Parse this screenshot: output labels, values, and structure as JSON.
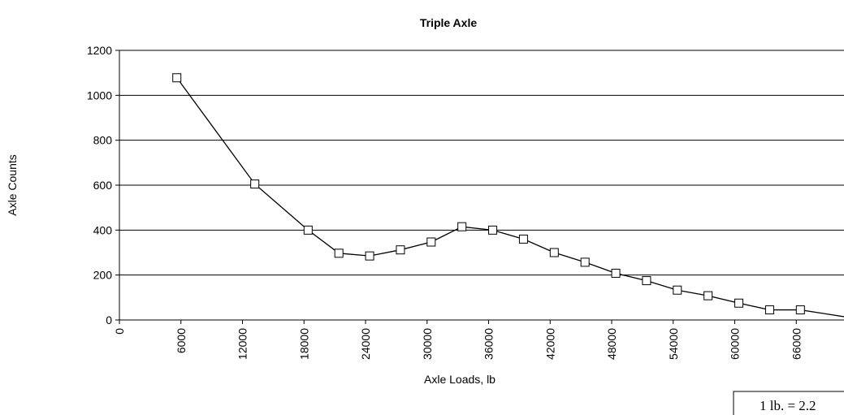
{
  "chart_data": {
    "type": "line",
    "title": "Triple Axle",
    "x_label": "Axle Loads, lb",
    "y_label": "Axle Counts",
    "annotation": "1 lb. = 2.2",
    "x": [
      5600,
      13200,
      18400,
      21400,
      24400,
      27400,
      30400,
      33400,
      36400,
      39400,
      42400,
      45400,
      48400,
      51400,
      54400,
      57400,
      60400,
      63400,
      66400,
      72000
    ],
    "series": [
      {
        "name": "Triple Axle",
        "color": "#000000",
        "values": [
          1078,
          605,
          400,
          297,
          285,
          312,
          347,
          415,
          400,
          360,
          300,
          257,
          208,
          175,
          133,
          108,
          75,
          45,
          45,
          5
        ]
      }
    ],
    "xlim": [
      0,
      72000
    ],
    "xticks": [
      0,
      6000,
      12000,
      18000,
      24000,
      30000,
      36000,
      42000,
      48000,
      54000,
      60000,
      66000
    ],
    "ylim": [
      0,
      1200
    ],
    "yticks": [
      0,
      200,
      400,
      600,
      800,
      1000,
      1200
    ],
    "grid": true
  }
}
